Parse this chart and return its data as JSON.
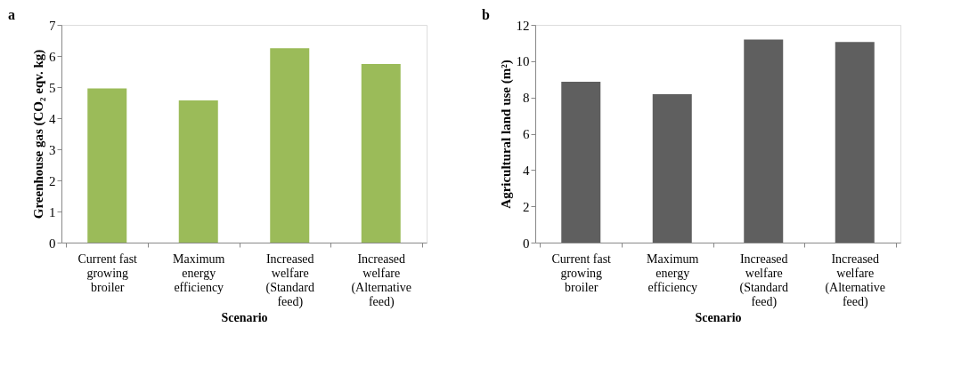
{
  "chart_data": [
    {
      "type": "bar",
      "title": "a",
      "xlabel": "Scenario",
      "ylabel": "Greenhouse gas (CO₂ eqv. kg)",
      "categories": [
        "Current fast growing broiler",
        "Maximum energy efficiency",
        "Increased welfare (Standard feed)",
        "Increased welfare (Alternative feed)"
      ],
      "values": [
        4.96,
        4.57,
        6.25,
        5.74
      ],
      "color": "#9bbb59",
      "ylim": [
        0,
        7
      ],
      "yticks": [
        0,
        1,
        2,
        3,
        4,
        5,
        6,
        7
      ],
      "grid": false
    },
    {
      "type": "bar",
      "title": "b",
      "xlabel": "Scenario",
      "ylabel": "Agricultural land use (m²)",
      "categories": [
        "Current fast growing broiler",
        "Maximum energy efficiency",
        "Increased welfare (Standard feed)",
        "Increased welfare (Alternative feed)"
      ],
      "values": [
        8.86,
        8.18,
        11.19,
        11.06
      ],
      "color": "#5f5f5f",
      "ylim": [
        0,
        12
      ],
      "yticks": [
        0,
        2,
        4,
        6,
        8,
        10,
        12
      ],
      "grid": false
    }
  ]
}
